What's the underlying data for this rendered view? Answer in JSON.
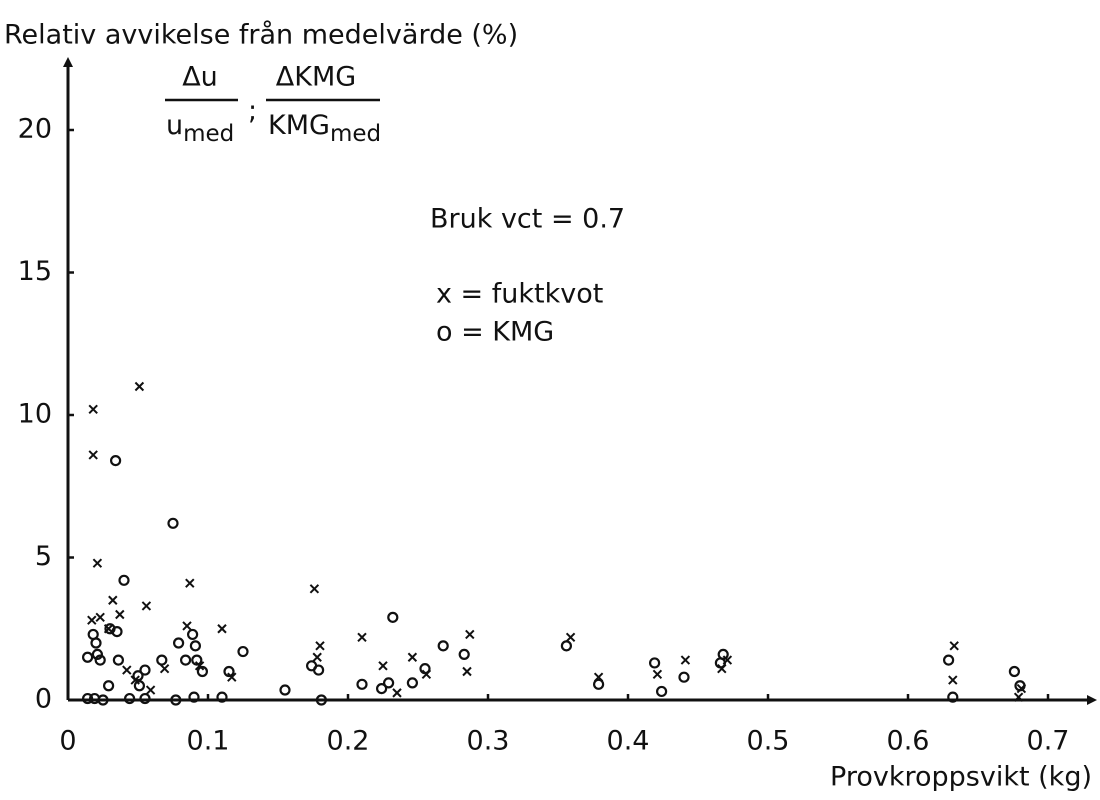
{
  "chart_data": {
    "type": "scatter",
    "ylabel": "Relativ avvikelse från medelvärde (%)",
    "xlabel": "Provkroppsvikt (kg)",
    "ylabel_fraction": {
      "num1": "Δu",
      "den1": "u",
      "den1_sub": "med",
      "sep": ";",
      "num2": "ΔKMG",
      "den2": "KMG",
      "den2_sub": "med"
    },
    "annotation": "Bruk vct = 0.7",
    "xlim": [
      0,
      0.73
    ],
    "ylim": [
      0,
      22.4
    ],
    "xticks": [
      0,
      0.1,
      0.2,
      0.3,
      0.4,
      0.5,
      0.6,
      0.7
    ],
    "yticks": [
      0,
      5,
      10,
      15,
      20
    ],
    "series": [
      {
        "name": "x = fuktkvot",
        "marker": "x",
        "color": "#111111",
        "x": [
          0.018,
          0.018,
          0.051,
          0.021,
          0.087,
          0.056,
          0.037,
          0.032,
          0.017,
          0.023,
          0.029,
          0.085,
          0.11,
          0.176,
          0.18,
          0.178,
          0.21,
          0.225,
          0.246,
          0.256,
          0.287,
          0.285,
          0.359,
          0.379,
          0.421,
          0.441,
          0.467,
          0.471,
          0.633,
          0.632,
          0.681,
          0.679,
          0.117,
          0.094,
          0.069,
          0.059,
          0.048,
          0.042,
          0.235
        ],
        "values": [
          10.2,
          8.6,
          11.0,
          4.8,
          4.1,
          3.3,
          3.0,
          3.5,
          2.8,
          2.9,
          2.5,
          2.6,
          2.5,
          3.9,
          1.9,
          1.5,
          2.2,
          1.2,
          1.5,
          0.9,
          2.3,
          1.0,
          2.2,
          0.8,
          0.9,
          1.4,
          1.1,
          1.4,
          1.9,
          0.7,
          0.4,
          0.1,
          0.8,
          1.2,
          1.1,
          0.35,
          0.7,
          1.05,
          0.25
        ]
      },
      {
        "name": "o = KMG",
        "marker": "o",
        "color": "#111111",
        "x": [
          0.034,
          0.075,
          0.04,
          0.232,
          0.018,
          0.02,
          0.03,
          0.035,
          0.079,
          0.089,
          0.091,
          0.014,
          0.021,
          0.023,
          0.036,
          0.067,
          0.084,
          0.092,
          0.096,
          0.055,
          0.05,
          0.125,
          0.115,
          0.174,
          0.179,
          0.268,
          0.283,
          0.255,
          0.21,
          0.224,
          0.229,
          0.246,
          0.356,
          0.379,
          0.419,
          0.424,
          0.44,
          0.466,
          0.468,
          0.629,
          0.632,
          0.676,
          0.68,
          0.155,
          0.181,
          0.11,
          0.09,
          0.077,
          0.044,
          0.055,
          0.025,
          0.014,
          0.019,
          0.029,
          0.051
        ],
        "values": [
          8.4,
          6.2,
          4.2,
          2.9,
          2.3,
          2.0,
          2.5,
          2.4,
          2.0,
          2.3,
          1.9,
          1.5,
          1.6,
          1.4,
          1.4,
          1.4,
          1.4,
          1.4,
          1.0,
          1.05,
          0.85,
          1.7,
          1.0,
          1.2,
          1.05,
          1.9,
          1.6,
          1.1,
          0.55,
          0.4,
          0.6,
          0.6,
          1.9,
          0.55,
          1.3,
          0.3,
          0.8,
          1.3,
          1.6,
          1.4,
          0.1,
          1.0,
          0.5,
          0.35,
          0,
          0.1,
          0.1,
          0,
          0.05,
          0.05,
          0,
          0.05,
          0.05,
          0.5,
          0.5
        ]
      }
    ]
  }
}
